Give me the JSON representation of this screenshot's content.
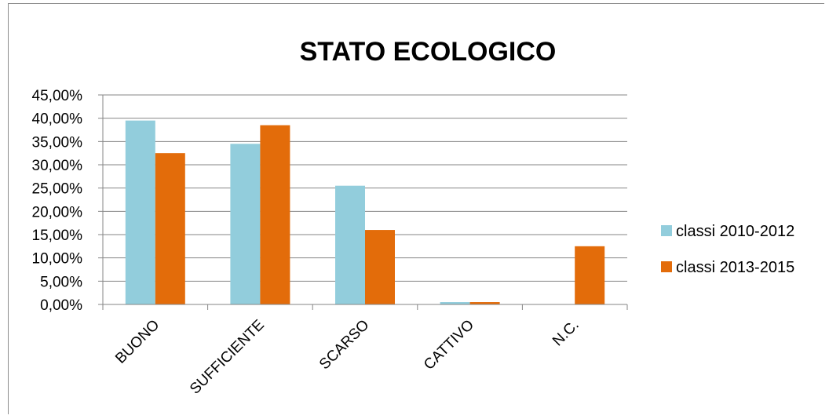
{
  "chart_data": {
    "type": "bar",
    "title": "STATO ECOLOGICO",
    "categories": [
      "BUONO",
      "SUFFICIENTE",
      "SCARSO",
      "CATTIVO",
      "N.C."
    ],
    "series": [
      {
        "name": "classi 2010-2012",
        "color": "#92cddc",
        "values": [
          39.5,
          34.5,
          25.5,
          0.5,
          0
        ]
      },
      {
        "name": "classi 2013-2015",
        "color": "#e36c0a",
        "values": [
          32.5,
          38.5,
          16.0,
          0.5,
          12.5
        ]
      }
    ],
    "ylim": [
      0,
      45
    ],
    "yticks": [
      "0,00%",
      "5,00%",
      "10,00%",
      "15,00%",
      "20,00%",
      "25,00%",
      "30,00%",
      "35,00%",
      "40,00%",
      "45,00%"
    ],
    "grid": true,
    "legend_position": "right"
  }
}
